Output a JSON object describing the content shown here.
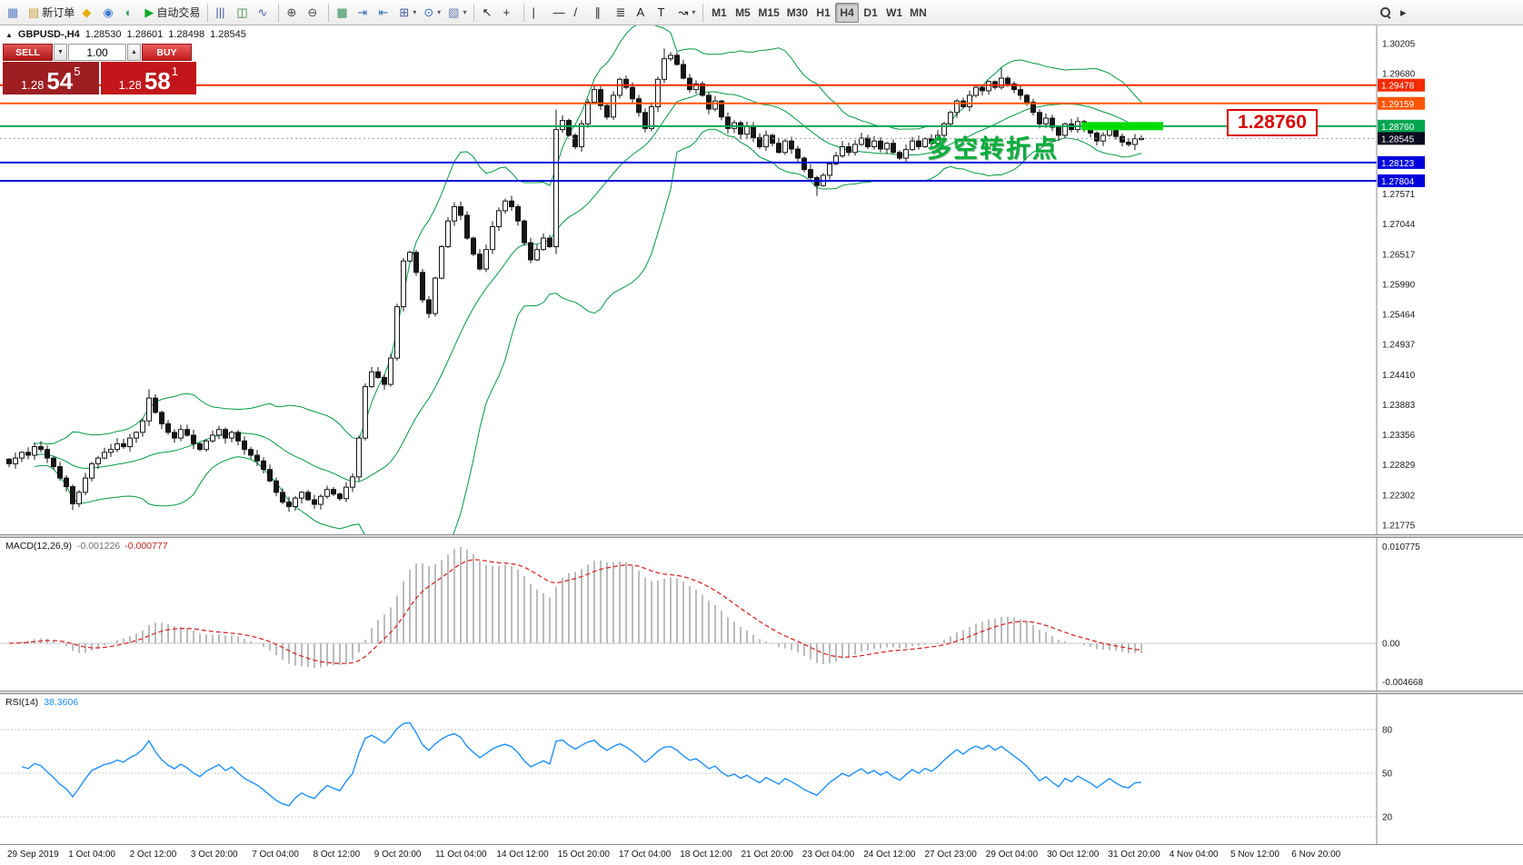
{
  "toolbar": {
    "items": [
      {
        "name": "chart-window-icon-button",
        "type": "iconbtn",
        "icon": {
          "name": "chart-window-icon",
          "glyph": "▦",
          "color": "#5a7fc0"
        }
      },
      {
        "name": "new-order-button",
        "type": "button",
        "label": "新订单",
        "icon": {
          "name": "new-order-icon",
          "glyph": "▤",
          "color": "#c79a2e"
        }
      },
      {
        "name": "metaeditor-button",
        "type": "iconbtn",
        "icon": {
          "name": "metaeditor-icon",
          "glyph": "◆",
          "color": "#e2ad00"
        }
      },
      {
        "name": "profile-button",
        "type": "iconbtn",
        "icon": {
          "name": "profile-icon",
          "glyph": "◉",
          "color": "#3a7bd5"
        }
      },
      {
        "name": "support-button",
        "type": "iconbtn",
        "icon": {
          "name": "headset-icon",
          "glyph": "◖",
          "color": "#2f9e55"
        }
      },
      {
        "name": "autotrading-button",
        "type": "button",
        "label": "自动交易",
        "icon": {
          "name": "autotrading-play-icon",
          "glyph": "▶",
          "color": "#11a92c"
        }
      },
      {
        "type": "sep"
      },
      {
        "name": "bar-chart-button",
        "type": "iconbtn",
        "icon": {
          "name": "bar-chart-icon",
          "glyph": "|||",
          "color": "#44599e"
        }
      },
      {
        "name": "candlestick-button",
        "type": "iconbtn",
        "icon": {
          "name": "candlestick-icon",
          "glyph": "◫",
          "color": "#2e7d32"
        }
      },
      {
        "name": "line-chart-button",
        "type": "iconbtn",
        "icon": {
          "name": "line-chart-icon",
          "glyph": "∿",
          "color": "#44599e"
        }
      },
      {
        "type": "sep"
      },
      {
        "name": "zoom-in-button",
        "type": "iconbtn",
        "icon": {
          "name": "zoom-in-icon",
          "glyph": "⊕",
          "color": "#4a4a4a"
        }
      },
      {
        "name": "zoom-out-button",
        "type": "iconbtn",
        "icon": {
          "name": "zoom-out-icon",
          "glyph": "⊖",
          "color": "#4a4a4a"
        }
      },
      {
        "type": "sep"
      },
      {
        "name": "tile-windows-button",
        "type": "iconbtn",
        "icon": {
          "name": "tile-windows-icon",
          "glyph": "▦",
          "color": "#2e8b57"
        }
      },
      {
        "name": "auto-scroll-button",
        "type": "iconbtn",
        "icon": {
          "name": "auto-scroll-icon",
          "glyph": "⇥",
          "color": "#3a6ec0"
        }
      },
      {
        "name": "chart-shift-button",
        "type": "iconbtn",
        "icon": {
          "name": "chart-shift-icon",
          "glyph": "⇤",
          "color": "#3a6ec0"
        }
      },
      {
        "name": "new-chart-button",
        "type": "iconbtn",
        "caret": "▾",
        "icon": {
          "name": "new-chart-icon",
          "glyph": "⊞",
          "color": "#44599e"
        }
      },
      {
        "name": "periods-button",
        "type": "iconbtn",
        "caret": "▾",
        "icon": {
          "name": "clock-icon",
          "glyph": "⊙",
          "color": "#2f6fc0"
        }
      },
      {
        "name": "templates-button",
        "type": "iconbtn",
        "caret": "▾",
        "icon": {
          "name": "template-icon",
          "glyph": "▧",
          "color": "#6a7fb0"
        }
      },
      {
        "type": "sep"
      },
      {
        "name": "cursor-button",
        "type": "iconbtn",
        "icon": {
          "name": "cursor-icon",
          "glyph": "↖",
          "color": "#222222"
        }
      },
      {
        "name": "crosshair-button",
        "type": "iconbtn",
        "icon": {
          "name": "crosshair-icon",
          "glyph": "+",
          "color": "#222222"
        }
      },
      {
        "type": "sep"
      },
      {
        "name": "vertical-line-button",
        "type": "iconbtn",
        "icon": {
          "name": "vertical-line-icon",
          "glyph": "|",
          "color": "#222222"
        }
      },
      {
        "name": "horizontal-line-button",
        "type": "iconbtn",
        "icon": {
          "name": "horizontal-line-icon",
          "glyph": "—",
          "color": "#222222"
        }
      },
      {
        "name": "trendline-button",
        "type": "iconbtn",
        "icon": {
          "name": "trendline-icon",
          "glyph": "/",
          "color": "#222222"
        }
      },
      {
        "name": "channel-button",
        "type": "iconbtn",
        "icon": {
          "name": "channel-icon",
          "glyph": "∥",
          "color": "#222222"
        }
      },
      {
        "name": "fibonacci-button",
        "type": "iconbtn",
        "icon": {
          "name": "fibonacci-icon",
          "glyph": "≣",
          "color": "#222222"
        }
      },
      {
        "name": "text-button",
        "type": "iconbtn",
        "icon": {
          "name": "text-icon",
          "glyph": "A",
          "color": "#222222"
        }
      },
      {
        "name": "text-label-button",
        "type": "iconbtn",
        "icon": {
          "name": "text-label-icon",
          "glyph": "T",
          "color": "#222222"
        }
      },
      {
        "name": "arrows-button",
        "type": "iconbtn",
        "caret": "▾",
        "icon": {
          "name": "arrow-tool-icon",
          "glyph": "↝",
          "color": "#222222"
        }
      },
      {
        "type": "sep"
      },
      {
        "name": "tf-m1-button",
        "type": "tf",
        "label": "M1"
      },
      {
        "name": "tf-m5-button",
        "type": "tf",
        "label": "M5"
      },
      {
        "name": "tf-m15-button",
        "type": "tf",
        "label": "M15"
      },
      {
        "name": "tf-m30-button",
        "type": "tf",
        "label": "M30"
      },
      {
        "name": "tf-h1-button",
        "type": "tf",
        "label": "H1"
      },
      {
        "name": "tf-h4-button",
        "type": "tf",
        "label": "H4",
        "active": true
      },
      {
        "name": "tf-d1-button",
        "type": "tf",
        "label": "D1"
      },
      {
        "name": "tf-w1-button",
        "type": "tf",
        "label": "W1"
      },
      {
        "name": "tf-mn-button",
        "type": "tf",
        "label": "MN"
      }
    ],
    "right_items": [
      {
        "name": "search-button",
        "type": "search"
      },
      {
        "name": "toolbar-overflow-button",
        "type": "iconbtn",
        "icon": {
          "name": "overflow-arrow-icon",
          "glyph": "▸",
          "color": "#333333"
        }
      }
    ]
  },
  "symbol_info": {
    "expander": "▲",
    "title": "GBPUSD-,H4",
    "open": "1.28530",
    "high": "1.28601",
    "low": "1.28498",
    "close": "1.28545"
  },
  "trade_panel": {
    "sell_button": "SELL",
    "buy_button": "BUY",
    "volume": "1.00",
    "vol_down_glyph": "▼",
    "vol_up_glyph": "▲",
    "sell_price": {
      "prefix": "1.28",
      "big": "54",
      "sup": "5"
    },
    "buy_price": {
      "prefix": "1.28",
      "big": "58",
      "sup": "1"
    }
  },
  "objects": {
    "annotation": {
      "text": "多空转折点",
      "color": "#00ae3a"
    },
    "price_callout": {
      "text": "1.28760",
      "color": "#d80000"
    },
    "highlight_bar": {
      "price": 1.2876,
      "x_start_index": 169,
      "x_end_index": 181,
      "color": "#00dc00"
    }
  },
  "price_axis": {
    "range": {
      "top": 1.30205,
      "bottom": 1.21775
    },
    "ticks": [
      {
        "label": "1.30205",
        "price": 1.30205
      },
      {
        "label": "1.29680",
        "price": 1.2968
      },
      {
        "label": "1.29151",
        "price": 1.29151
      },
      {
        "label": "1.28624",
        "price": 1.28624
      },
      {
        "label": "1.28098",
        "price": 1.28098
      },
      {
        "label": "1.27571",
        "price": 1.27571
      },
      {
        "label": "1.27044",
        "price": 1.27044
      },
      {
        "label": "1.26517",
        "price": 1.26517
      },
      {
        "label": "1.25990",
        "price": 1.2599
      },
      {
        "label": "1.25464",
        "price": 1.25464
      },
      {
        "label": "1.24937",
        "price": 1.24937
      },
      {
        "label": "1.24410",
        "price": 1.2441
      },
      {
        "label": "1.23883",
        "price": 1.23883
      },
      {
        "label": "1.23356",
        "price": 1.23356
      },
      {
        "label": "1.22829",
        "price": 1.22829
      },
      {
        "label": "1.22302",
        "price": 1.22302
      },
      {
        "label": "1.21775",
        "price": 1.21775
      }
    ]
  },
  "level_lines": [
    {
      "name": "resistance-line-1",
      "label": "1.29478",
      "price": 1.29478,
      "color": "#f32b00",
      "style": "solid"
    },
    {
      "name": "resistance-line-2",
      "label": "1.29159",
      "price": 1.29159,
      "color": "#ff5500",
      "style": "solid"
    },
    {
      "name": "pivot-line",
      "label": "1.28760",
      "price": 1.2876,
      "color": "#00a651",
      "style": "solid"
    },
    {
      "name": "bid-price-line",
      "label": "1.28545",
      "price": 1.28545,
      "color": "#0b0b20",
      "style": "dotted",
      "line_color": "#9a9aa6"
    },
    {
      "name": "support-line-1",
      "label": "1.28123",
      "price": 1.28123,
      "color": "#0000dd",
      "style": "solid"
    },
    {
      "name": "support-line-2",
      "label": "1.27804",
      "price": 1.27804,
      "color": "#0000dd",
      "style": "solid"
    }
  ],
  "macd_panel": {
    "title": "MACD(12,26,9)",
    "value_main": "-0.001226",
    "value_signal": "-0.000777",
    "axis_top": "0.010775",
    "axis_zero": "0.00",
    "axis_bottom": "-0.004668"
  },
  "rsi_panel": {
    "title": "RSI(14)",
    "value": "38.3606",
    "levels": [
      "80",
      "50",
      "20"
    ]
  },
  "time_axis": {
    "labels": [
      "29 Sep 2019",
      "1 Oct 04:00",
      "2 Oct 12:00",
      "3 Oct 20:00",
      "7 Oct 04:00",
      "8 Oct 12:00",
      "9 Oct 20:00",
      "11 Oct 04:00",
      "14 Oct 12:00",
      "15 Oct 20:00",
      "17 Oct 04:00",
      "18 Oct 12:00",
      "21 Oct 20:00",
      "23 Oct 04:00",
      "24 Oct 12:00",
      "27 Oct 23:00",
      "29 Oct 04:00",
      "30 Oct 12:00",
      "31 Oct 20:00",
      "4 Nov 04:00",
      "5 Nov 12:00",
      "6 Nov 20:00"
    ]
  },
  "chart_data": {
    "type": "candlestick",
    "symbol": "GBPUSD-",
    "timeframe": "H4",
    "title": "GBPUSD-,H4",
    "ohlc_current": {
      "open": 1.2853,
      "high": 1.28601,
      "low": 1.28498,
      "close": 1.28545
    },
    "y_range": [
      1.21775,
      1.30205
    ],
    "closes": [
      1.2285,
      1.2295,
      1.2305,
      1.23,
      1.2315,
      1.231,
      1.2295,
      1.228,
      1.226,
      1.2245,
      1.2215,
      1.2235,
      1.226,
      1.2285,
      1.2295,
      1.2305,
      1.231,
      1.232,
      1.2315,
      1.233,
      1.234,
      1.236,
      1.24,
      1.2375,
      1.2355,
      1.234,
      1.233,
      1.2345,
      1.2335,
      1.232,
      1.231,
      1.2325,
      1.2335,
      1.2345,
      1.233,
      1.234,
      1.2325,
      1.231,
      1.23,
      1.229,
      1.2275,
      1.2255,
      1.2235,
      1.2218,
      1.221,
      1.2225,
      1.2235,
      1.2222,
      1.2214,
      1.2228,
      1.224,
      1.2232,
      1.2224,
      1.2244,
      1.2262,
      1.233,
      1.242,
      1.2446,
      1.2436,
      1.2424,
      1.247,
      1.256,
      1.264,
      1.2655,
      1.262,
      1.2572,
      1.2548,
      1.261,
      1.2665,
      1.271,
      1.2735,
      1.272,
      1.268,
      1.2652,
      1.2626,
      1.266,
      1.27,
      1.2728,
      1.2745,
      1.2735,
      1.271,
      1.2672,
      1.2642,
      1.266,
      1.268,
      1.2665,
      1.287,
      1.2886,
      1.286,
      1.284,
      1.288,
      1.2918,
      1.294,
      1.2912,
      1.2892,
      1.293,
      1.2958,
      1.2944,
      1.2924,
      1.29,
      1.2872,
      1.291,
      1.2958,
      1.2994,
      1.3,
      1.2984,
      1.296,
      1.294,
      1.295,
      1.293,
      1.2906,
      1.292,
      1.2892,
      1.2872,
      1.2882,
      1.2862,
      1.2875,
      1.2856,
      1.284,
      1.286,
      1.2846,
      1.283,
      1.285,
      1.2836,
      1.282,
      1.28,
      1.2786,
      1.2772,
      1.279,
      1.281,
      1.2824,
      1.284,
      1.283,
      1.2844,
      1.2855,
      1.284,
      1.285,
      1.2836,
      1.2846,
      1.283,
      1.282,
      1.2835,
      1.285,
      1.284,
      1.2854,
      1.2846,
      1.286,
      1.288,
      1.29,
      1.292,
      1.291,
      1.293,
      1.2944,
      1.2938,
      1.2954,
      1.2944,
      1.296,
      1.295,
      1.294,
      1.293,
      1.2918,
      1.29,
      1.288,
      1.289,
      1.2874,
      1.286,
      1.288,
      1.287,
      1.2884,
      1.2874,
      1.2864,
      1.285,
      1.286,
      1.287,
      1.2858,
      1.2848,
      1.2844,
      1.2854,
      1.28545
    ],
    "wick_overrides": {
      "10": {
        "low": 1.2204
      },
      "22": {
        "high": 1.2415
      },
      "55": {
        "low": 1.2255
      },
      "86": {
        "low": 1.2652,
        "high": 1.2905
      },
      "103": {
        "high": 1.3012
      },
      "127": {
        "low": 1.2754
      },
      "156": {
        "high": 1.2978
      }
    },
    "overlays": [
      {
        "type": "bollinger",
        "period": 20,
        "deviation": 2,
        "color": "#009a40"
      }
    ],
    "indicators": [
      {
        "type": "macd",
        "fast": 12,
        "slow": 26,
        "signal": 9,
        "current": [
          -0.001226,
          -0.000777
        ],
        "axis_max": 0.010775,
        "axis_min": -0.004668,
        "histogram_color": "#bcbcbc",
        "signal_color": "#d92a2a"
      },
      {
        "type": "rsi",
        "period": 14,
        "current": 38.3606,
        "levels": [
          80,
          50,
          20
        ],
        "line_color": "#1E90FF"
      }
    ]
  }
}
